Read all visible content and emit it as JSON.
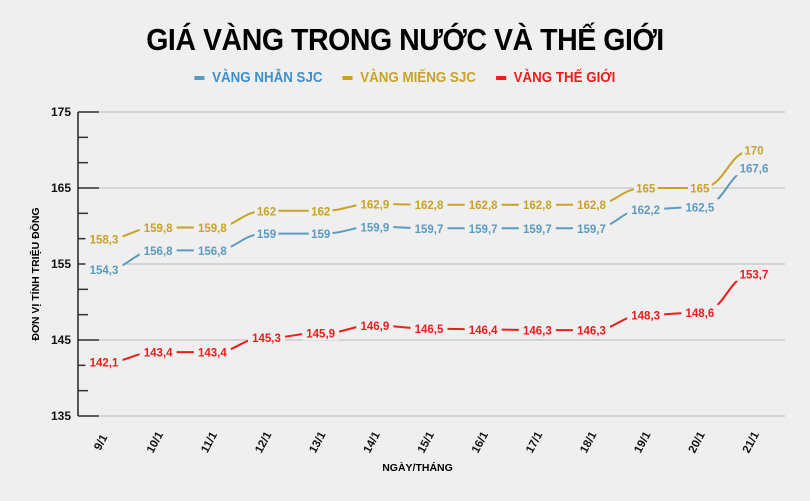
{
  "chart_data": {
    "type": "line",
    "title": "GIÁ VÀNG TRONG NƯỚC VÀ THẾ GIỚI",
    "xlabel": "NGÀY/THÁNG",
    "ylabel": "ĐƠN VỊ TÍNH TRIỆU ĐỒNG",
    "ylim": [
      135,
      175
    ],
    "yticks": [
      135,
      145,
      155,
      165,
      175
    ],
    "grid": true,
    "legend_position": "top",
    "categories": [
      "9/1",
      "10/1",
      "11/1",
      "12/1",
      "13/1",
      "14/1",
      "15/1",
      "16/1",
      "17/1",
      "18/1",
      "19/1",
      "20/1",
      "21/1"
    ],
    "series": [
      {
        "name": "VÀNG NHẪN SJC",
        "color": "#5b9bbf",
        "values": [
          154.3,
          156.8,
          156.8,
          159,
          159,
          159.9,
          159.7,
          159.7,
          159.7,
          159.7,
          162.2,
          162.5,
          167.6
        ],
        "labels": [
          "154,3",
          "156,8",
          "156,8",
          "159",
          "159",
          "159,9",
          "159,7",
          "159,7",
          "159,7",
          "159,7",
          "162,2",
          "162,5",
          "167,6"
        ]
      },
      {
        "name": "VÀNG MIẾNG SJC",
        "color": "#c9a227",
        "values": [
          158.3,
          159.8,
          159.8,
          162,
          162,
          162.9,
          162.8,
          162.8,
          162.8,
          162.8,
          165,
          165,
          170
        ],
        "labels": [
          "158,3",
          "159,8",
          "159,8",
          "162",
          "162",
          "162,9",
          "162,8",
          "162,8",
          "162,8",
          "162,8",
          "165",
          "165",
          "170"
        ]
      },
      {
        "name": "VÀNG THẾ GIỚI",
        "color": "#ee1c1c",
        "values": [
          142.1,
          143.4,
          143.4,
          145.3,
          145.9,
          146.9,
          146.5,
          146.4,
          146.3,
          146.3,
          148.3,
          148.6,
          153.7
        ],
        "labels": [
          "142,1",
          "143,4",
          "143,4",
          "145,3",
          "145,9",
          "146,9",
          "146,5",
          "146,4",
          "146,3",
          "146,3",
          "148,3",
          "148,6",
          "153,7"
        ]
      }
    ]
  }
}
